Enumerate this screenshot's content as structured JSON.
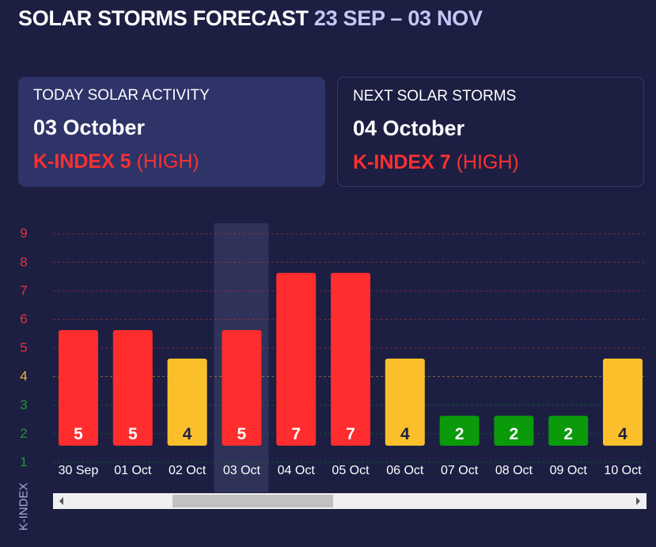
{
  "header": {
    "title": "SOLAR STORMS FORECAST",
    "range": "23 SEP – 03 NOV"
  },
  "today": {
    "label": "TODAY SOLAR ACTIVITY",
    "date": "03 October",
    "kindex": "K-INDEX 5",
    "level": "(HIGH)"
  },
  "next": {
    "label": "NEXT SOLAR STORMS",
    "date": "04 October",
    "kindex": "K-INDEX 7",
    "level": "(HIGH)"
  },
  "colors": {
    "high": "#ff2d2d",
    "medium": "#fcbf2c",
    "low": "#0a9a0a",
    "background": "#1c1f42"
  },
  "chart_data": {
    "type": "bar",
    "ylabel": "K-INDEX",
    "yticks": [
      1,
      2,
      3,
      4,
      5,
      6,
      7,
      8,
      9
    ],
    "ylim": [
      1,
      9
    ],
    "categories": [
      "30 Sep",
      "01 Oct",
      "02 Oct",
      "03 Oct",
      "04 Oct",
      "05 Oct",
      "06 Oct",
      "07 Oct",
      "08 Oct",
      "09 Oct",
      "10 Oct"
    ],
    "values": [
      5,
      5,
      4,
      5,
      7,
      7,
      4,
      2,
      2,
      2,
      4
    ],
    "highlighted": "03 Oct",
    "grid": true
  }
}
